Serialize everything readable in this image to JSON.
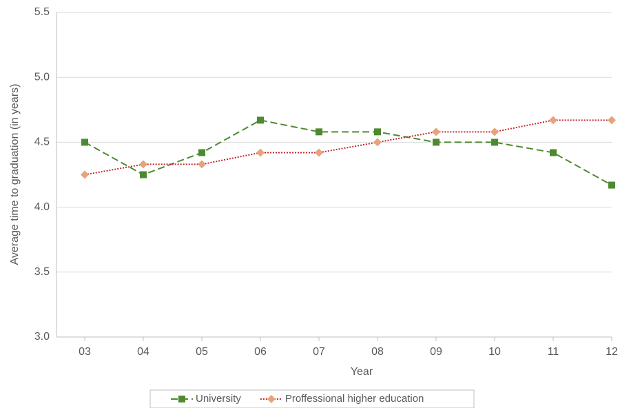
{
  "chart_data": {
    "type": "line",
    "x_label": "Year",
    "y_label": "Average time to graduation (in years)",
    "categories": [
      "03",
      "04",
      "05",
      "06",
      "07",
      "08",
      "09",
      "10",
      "11",
      "12"
    ],
    "series": [
      {
        "name": "University",
        "color": "#4d8a2f",
        "line_color": "#4d8a2f",
        "line_style": "dashed",
        "marker": "square",
        "values": [
          4.5,
          4.25,
          4.42,
          4.67,
          4.58,
          4.58,
          4.5,
          4.5,
          4.42,
          4.17
        ]
      },
      {
        "name": "Proffessional higher education",
        "color": "#e8a27c",
        "line_color": "#c0282a",
        "line_style": "dotted",
        "marker": "diamond",
        "values": [
          4.25,
          4.33,
          4.33,
          4.42,
          4.42,
          4.5,
          4.58,
          4.58,
          4.67,
          4.67
        ]
      }
    ],
    "ylim": [
      3.0,
      5.5
    ],
    "yticks": [
      {
        "value": 3,
        "label": "3.0"
      },
      3.5,
      {
        "value": 4,
        "label": "4.0"
      },
      4.5,
      {
        "value": 5,
        "label": "5.0"
      },
      5.5
    ],
    "grid": true,
    "legend": "bottom"
  }
}
